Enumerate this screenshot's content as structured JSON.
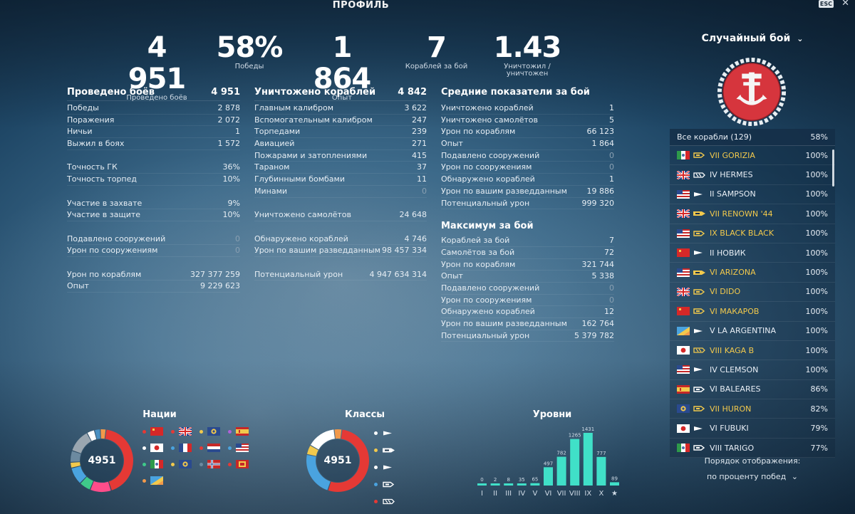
{
  "header": {
    "title": "ПРОФИЛЬ",
    "esc_label": "ESC",
    "close_glyph": "✕"
  },
  "kpis": [
    {
      "value": "4 951",
      "label": "Проведено боёв"
    },
    {
      "value": "58%",
      "label": "Победы"
    },
    {
      "value": "1 864",
      "label": "Опыт"
    },
    {
      "value": "7",
      "label": "Кораблей за бой"
    },
    {
      "value": "1.43",
      "label": "Уничтожил / уничтожен"
    }
  ],
  "battles": {
    "title": "Проведено боёв",
    "total": "4 951",
    "rows": [
      {
        "label": "Победы",
        "value": "2 878"
      },
      {
        "label": "Поражения",
        "value": "2 072"
      },
      {
        "label": "Ничьи",
        "value": "1"
      },
      {
        "label": "Выжил в боях",
        "value": "1 572"
      },
      null,
      {
        "label": "Точность ГК",
        "value": "36%"
      },
      {
        "label": "Точность торпед",
        "value": "10%"
      },
      null,
      {
        "label": "Участие в захвате",
        "value": "9%"
      },
      {
        "label": "Участие в защите",
        "value": "10%"
      },
      null,
      {
        "label": "Подавлено сооружений",
        "value": "0"
      },
      {
        "label": "Урон по сооружениям",
        "value": "0"
      },
      null,
      {
        "label": "Урон по кораблям",
        "value": "327 377 259"
      },
      {
        "label": "Опыт",
        "value": "9 229 623"
      }
    ]
  },
  "destroyed": {
    "title": "Уничтожено кораблей",
    "total": "4 842",
    "rows": [
      {
        "label": "Главным калибром",
        "value": "3 622"
      },
      {
        "label": "Вспомогательным калибром",
        "value": "247"
      },
      {
        "label": "Торпедами",
        "value": "239"
      },
      {
        "label": "Авиацией",
        "value": "271"
      },
      {
        "label": "Пожарами и затоплениями",
        "value": "415"
      },
      {
        "label": "Тараном",
        "value": "37"
      },
      {
        "label": "Глубинными бомбами",
        "value": "11"
      },
      {
        "label": "Минами",
        "value": "0"
      },
      null,
      {
        "label": "Уничтожено самолётов",
        "value": "24 648"
      },
      null,
      {
        "label": "Обнаружено кораблей",
        "value": "4 746"
      },
      {
        "label": "Урон по вашим разведданным",
        "value": "98 457 334"
      },
      null,
      {
        "label": "Потенциальный урон",
        "value": "4 947 634 314"
      }
    ]
  },
  "average": {
    "title": "Средние показатели за бой",
    "rows": [
      {
        "label": "Уничтожено кораблей",
        "value": "1"
      },
      {
        "label": "Уничтожено самолётов",
        "value": "5"
      },
      {
        "label": "Урон по кораблям",
        "value": "66 123"
      },
      {
        "label": "Опыт",
        "value": "1 864"
      },
      {
        "label": "Подавлено сооружений",
        "value": "0"
      },
      {
        "label": "Урон по сооружениям",
        "value": "0"
      },
      {
        "label": "Обнаружено кораблей",
        "value": "1"
      },
      {
        "label": "Урон по вашим разведданным",
        "value": "19 886"
      },
      {
        "label": "Потенциальный урон",
        "value": "999 320"
      }
    ]
  },
  "maximum": {
    "title": "Максимум за бой",
    "rows": [
      {
        "label": "Кораблей за бой",
        "value": "7"
      },
      {
        "label": "Самолётов за бой",
        "value": "72"
      },
      {
        "label": "Урон по кораблям",
        "value": "321 744"
      },
      {
        "label": "Опыт",
        "value": "5 338"
      },
      {
        "label": "Подавлено сооружений",
        "value": "0"
      },
      {
        "label": "Урон по сооружениям",
        "value": "0"
      },
      {
        "label": "Обнаружено кораблей",
        "value": "12"
      },
      {
        "label": "Урон по вашим разведданным",
        "value": "162 764"
      },
      {
        "label": "Потенциальный урон",
        "value": "5 379 782"
      }
    ]
  },
  "mode": {
    "label": "Случайный бой",
    "chevron": "⌄"
  },
  "ships_panel": {
    "header_label": "Все корабли (129)",
    "header_pct": "58%",
    "ships": [
      {
        "flag": "italy",
        "cls": "cruiser",
        "name": "VII GORIZIA",
        "pct": "100%",
        "gold": true
      },
      {
        "flag": "uk",
        "cls": "carrier",
        "name": "IV HERMES",
        "pct": "100%",
        "gold": false
      },
      {
        "flag": "usa",
        "cls": "destroyer",
        "name": "II SAMPSON",
        "pct": "100%",
        "gold": false
      },
      {
        "flag": "uk",
        "cls": "battleship",
        "name": "VII RENOWN '44",
        "pct": "100%",
        "gold": true
      },
      {
        "flag": "usa",
        "cls": "cruiser",
        "name": "IX BLACK BLACK",
        "pct": "100%",
        "gold": true
      },
      {
        "flag": "ussr",
        "cls": "destroyer",
        "name": "II НОВИК",
        "pct": "100%",
        "gold": false
      },
      {
        "flag": "usa",
        "cls": "battleship",
        "name": "VI ARIZONA",
        "pct": "100%",
        "gold": true
      },
      {
        "flag": "uk",
        "cls": "cruiser",
        "name": "VI DIDO",
        "pct": "100%",
        "gold": true
      },
      {
        "flag": "ussr",
        "cls": "cruiser",
        "name": "VI МАКАРОВ",
        "pct": "100%",
        "gold": true
      },
      {
        "flag": "panam",
        "cls": "destroyer",
        "name": "V LA ARGENTINA",
        "pct": "100%",
        "gold": false
      },
      {
        "flag": "japan",
        "cls": "carrier",
        "name": "VIII KAGA B",
        "pct": "100%",
        "gold": true
      },
      {
        "flag": "usa",
        "cls": "destroyer",
        "name": "IV CLEMSON",
        "pct": "100%",
        "gold": false
      },
      {
        "flag": "spain",
        "cls": "cruiser",
        "name": "VI BALEARES",
        "pct": "86%",
        "gold": false
      },
      {
        "flag": "commonwealth",
        "cls": "cruiser",
        "name": "VII HURON",
        "pct": "82%",
        "gold": true
      },
      {
        "flag": "japan",
        "cls": "destroyer",
        "name": "VI FUBUKI",
        "pct": "79%",
        "gold": false
      },
      {
        "flag": "italy",
        "cls": "cruiser",
        "name": "VIII  TARIGO",
        "pct": "77%",
        "gold": false
      }
    ],
    "order_label": "Порядок отображения:",
    "order_value": "по проценту побед"
  },
  "nations": {
    "title": "Нации",
    "center_value": "4951",
    "legend": [
      {
        "color": "#e53935",
        "flag": "ussr"
      },
      {
        "color": "#e53935",
        "flag": "uk"
      },
      {
        "color": "#f2c94c",
        "flag": "commonwealth"
      },
      {
        "color": "#b061d9",
        "flag": "spain"
      },
      {
        "color": "#ffffff",
        "flag": "japan"
      },
      {
        "color": "#4aa3df",
        "flag": "france"
      },
      {
        "color": "#e53935",
        "flag": "netherlands"
      },
      {
        "color": "#4aa3df",
        "flag": "usa"
      },
      {
        "color": "#3fc98a",
        "flag": "italy"
      },
      {
        "color": "#f2c94c",
        "flag": "commonwealth"
      },
      {
        "color": "#6c8aa0",
        "flag": "norway"
      },
      {
        "color": "#e53935",
        "flag": "europe"
      },
      {
        "color": "#f2994a",
        "flag": "panam"
      }
    ]
  },
  "classes": {
    "title": "Классы",
    "center_value": "4951",
    "legend": [
      {
        "color": "#ffffff",
        "cls": "destroyer"
      },
      {
        "color": "#f2c94c",
        "cls": "battleship"
      },
      {
        "color": "#ffffff",
        "cls": "destroyer-light"
      },
      {
        "color": "#4aa3df",
        "cls": "cruiser"
      },
      {
        "color": "#e53935",
        "cls": "carrier"
      }
    ]
  },
  "chart_data": [
    {
      "type": "pie",
      "title": "Нации",
      "center_label": "4951",
      "slices": [
        {
          "color": "#e53935",
          "value": 43
        },
        {
          "color": "#ff4d8a",
          "value": 11
        },
        {
          "color": "#3fc98a",
          "value": 6
        },
        {
          "color": "#4aa3df",
          "value": 9
        },
        {
          "color": "#f2c94c",
          "value": 3
        },
        {
          "color": "#6c8aa0",
          "value": 6
        },
        {
          "color": "#9aa6b0",
          "value": 12
        },
        {
          "color": "#ffffff",
          "value": 4
        },
        {
          "color": "#4a90c2",
          "value": 3
        },
        {
          "color": "#f2994a",
          "value": 3
        }
      ]
    },
    {
      "type": "pie",
      "title": "Классы",
      "center_label": "4951",
      "slices": [
        {
          "color": "#e53935",
          "value": 53
        },
        {
          "color": "#4aa3df",
          "value": 23
        },
        {
          "color": "#f2c94c",
          "value": 5
        },
        {
          "color": "#ffffff",
          "value": 15
        },
        {
          "color": "#f2994a",
          "value": 4
        }
      ]
    },
    {
      "type": "bar",
      "title": "Уровни",
      "categories": [
        "I",
        "II",
        "III",
        "IV",
        "V",
        "VI",
        "VII",
        "VIII",
        "IX",
        "X",
        "★"
      ],
      "values": [
        0,
        2,
        8,
        35,
        65,
        497,
        782,
        1265,
        1431,
        777,
        89
      ],
      "ylim": [
        0,
        1431
      ],
      "bar_color": "#40e0c8"
    }
  ]
}
